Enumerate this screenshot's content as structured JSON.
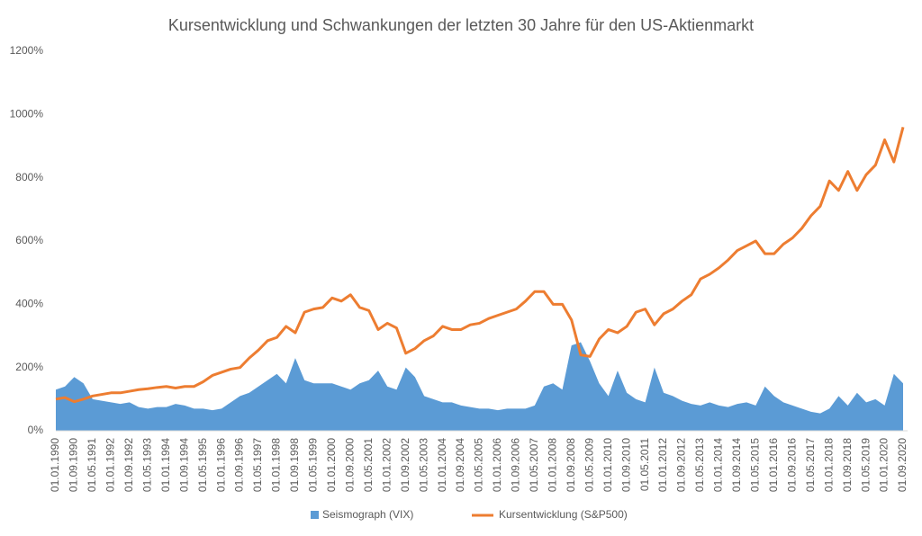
{
  "chart_data": {
    "type": "area_line",
    "title": "Kursentwicklung und Schwankungen der letzten 30 Jahre für den US-Aktienmarkt",
    "categories": [
      "01.01.1990",
      null,
      "01.09.1990",
      null,
      "01.05.1991",
      null,
      "01.01.1992",
      null,
      "01.09.1992",
      null,
      "01.05.1993",
      null,
      "01.01.1994",
      null,
      "01.09.1994",
      null,
      "01.05.1995",
      null,
      "01.01.1996",
      null,
      "01.09.1996",
      null,
      "01.05.1997",
      null,
      "01.01.1998",
      null,
      "01.09.1998",
      null,
      "01.05.1999",
      null,
      "01.01.2000",
      null,
      "01.09.2000",
      null,
      "01.05.2001",
      null,
      "01.01.2002",
      null,
      "01.09.2002",
      null,
      "01.05.2003",
      null,
      "01.01.2004",
      null,
      "01.09.2004",
      null,
      "01.05.2005",
      null,
      "01.01.2006",
      null,
      "01.09.2006",
      null,
      "01.05.2007",
      null,
      "01.01.2008",
      null,
      "01.09.2008",
      null,
      "01.05.2009",
      null,
      "01.01.2010",
      null,
      "01.09.2010",
      null,
      "01.05.2011",
      null,
      "01.01.2012",
      null,
      "01.09.2012",
      null,
      "01.05.2013",
      null,
      "01.01.2014",
      null,
      "01.09.2014",
      null,
      "01.05.2015",
      null,
      "01.01.2016",
      null,
      "01.09.2016",
      null,
      "01.05.2017",
      null,
      "01.01.2018",
      null,
      "01.09.2018",
      null,
      "01.05.2019",
      null,
      "01.01.2020",
      null,
      "01.09.2020"
    ],
    "series": [
      {
        "name": "Seismograph (VIX)",
        "color": "#5b9bd5",
        "kind": "area",
        "values": [
          130,
          140,
          170,
          150,
          100,
          95,
          90,
          85,
          90,
          75,
          70,
          75,
          75,
          85,
          80,
          70,
          70,
          65,
          70,
          90,
          110,
          120,
          140,
          160,
          180,
          150,
          230,
          160,
          150,
          150,
          150,
          140,
          130,
          150,
          160,
          190,
          140,
          130,
          200,
          170,
          110,
          100,
          90,
          90,
          80,
          75,
          70,
          70,
          65,
          70,
          70,
          70,
          80,
          140,
          150,
          130,
          270,
          280,
          220,
          150,
          110,
          190,
          120,
          100,
          90,
          200,
          120,
          110,
          95,
          85,
          80,
          90,
          80,
          75,
          85,
          90,
          80,
          140,
          110,
          90,
          80,
          70,
          60,
          55,
          70,
          110,
          80,
          120,
          90,
          100,
          80,
          180,
          150
        ]
      },
      {
        "name": "Kursentwicklung (S&P500)",
        "color": "#ed7d31",
        "kind": "line",
        "values": [
          100,
          105,
          92,
          100,
          110,
          115,
          120,
          120,
          125,
          130,
          133,
          137,
          140,
          135,
          140,
          140,
          155,
          175,
          185,
          195,
          200,
          230,
          255,
          285,
          295,
          330,
          310,
          375,
          385,
          390,
          420,
          410,
          430,
          390,
          380,
          320,
          340,
          325,
          245,
          260,
          285,
          300,
          330,
          320,
          320,
          335,
          340,
          355,
          365,
          375,
          385,
          410,
          440,
          440,
          400,
          400,
          350,
          240,
          235,
          290,
          320,
          310,
          330,
          375,
          385,
          335,
          370,
          385,
          410,
          430,
          480,
          495,
          515,
          540,
          570,
          585,
          600,
          560,
          560,
          590,
          610,
          640,
          680,
          710,
          790,
          760,
          820,
          760,
          810,
          840,
          920,
          850,
          960
        ]
      }
    ],
    "ylim": [
      0,
      1200
    ],
    "yticks": [
      {
        "value": 0,
        "label": "0%"
      },
      {
        "value": 200,
        "label": "200%"
      },
      {
        "value": 400,
        "label": "400%"
      },
      {
        "value": 600,
        "label": "600%"
      },
      {
        "value": 800,
        "label": "800%"
      },
      {
        "value": 1000,
        "label": "1000%"
      },
      {
        "value": 1200,
        "label": "1200%"
      }
    ],
    "legend": "bottom"
  }
}
